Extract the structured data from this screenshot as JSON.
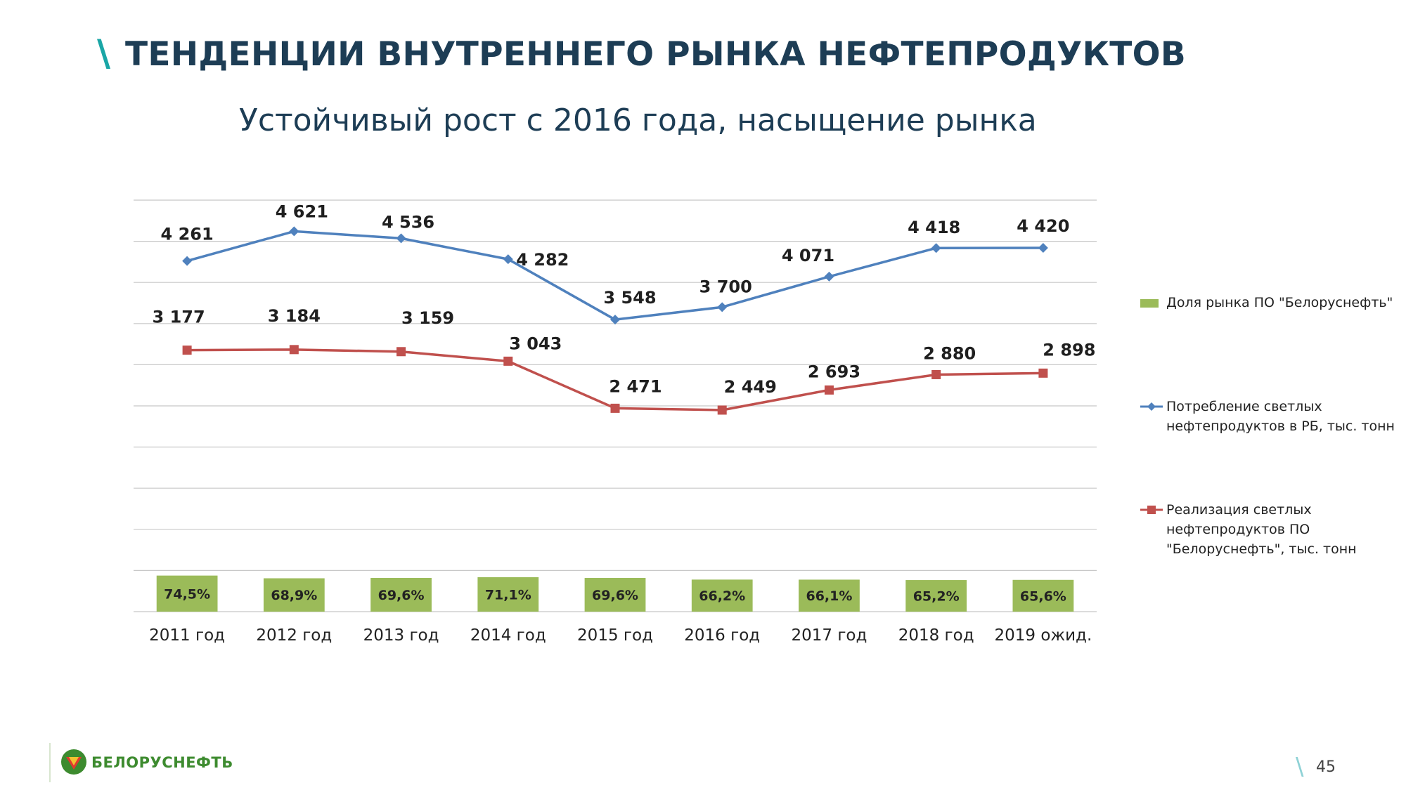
{
  "slide": {
    "title": "ТЕНДЕНЦИИ ВНУТРЕННЕГО РЫНКА НЕФТЕПРОДУКТОВ",
    "subtitle": "Устойчивый рост с 2016 года, насыщение рынка",
    "page_number": "45",
    "logo_text": "БЕЛОРУСНЕФТЬ",
    "accent_color": "#1aa6a6",
    "title_color": "#1d3d55"
  },
  "chart_data": {
    "type": "bar",
    "categories": [
      "2011 год",
      "2012 год",
      "2013 год",
      "2014 год",
      "2015 год",
      "2016 год",
      "2017 год",
      "2018 год",
      "2019 ожид."
    ],
    "series": [
      {
        "name": "Доля рынка ПО \"Белоруснефть\"",
        "type": "bar",
        "color": "#9bbb59",
        "values": [
          74.5,
          68.9,
          69.6,
          71.1,
          69.6,
          66.2,
          66.1,
          65.2,
          65.6
        ],
        "labels": [
          "74,5%",
          "68,9%",
          "69,6%",
          "71,1%",
          "69,6%",
          "66,2%",
          "66,1%",
          "65,2%",
          "65,6%"
        ]
      },
      {
        "name": "Потребление светлых нефтепродуктов в РБ, тыс. тонн",
        "type": "line",
        "marker": "diamond",
        "color": "#4f81bd",
        "values": [
          4261,
          4621,
          4536,
          4282,
          3548,
          3700,
          4071,
          4418,
          4420
        ],
        "labels": [
          "4 261",
          "4 621",
          "4 536",
          "4 282",
          "3 548",
          "3 700",
          "4 071",
          "4 418",
          "4 420"
        ]
      },
      {
        "name": "Реализация светлых нефтепродуктов  ПО \"Белоруснефть\", тыс. тонн",
        "type": "line",
        "marker": "square",
        "color": "#c0504d",
        "values": [
          3177,
          3184,
          3159,
          3043,
          2471,
          2449,
          2693,
          2880,
          2898
        ],
        "labels": [
          "3 177",
          "3 184",
          "3 159",
          "3 043",
          "2 471",
          "2 449",
          "2 693",
          "2 880",
          "2 898"
        ]
      }
    ],
    "grid": true,
    "legend_position": "right"
  }
}
